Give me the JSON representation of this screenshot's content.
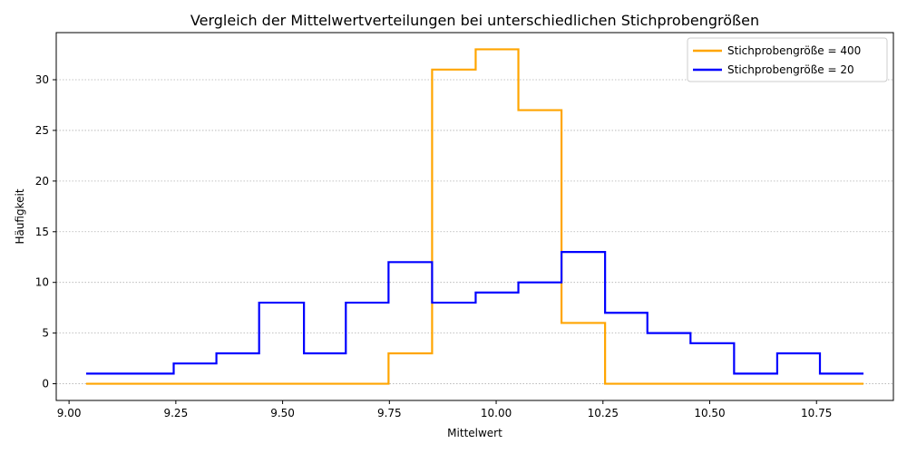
{
  "chart_data": {
    "type": "line",
    "title": "Vergleich der Mittelwertverteilungen bei unterschiedlichen Stichprobengrößen",
    "xlabel": "Mittelwert",
    "ylabel": "Häufigkeit",
    "xlim": [
      8.97,
      10.93
    ],
    "ylim": [
      -1.65,
      34.65
    ],
    "x_ticks": [
      9.0,
      9.25,
      9.5,
      9.75,
      10.0,
      10.25,
      10.5,
      10.75
    ],
    "x_tick_labels": [
      "9.00",
      "9.25",
      "9.50",
      "9.75",
      "10.00",
      "10.25",
      "10.50",
      "10.75"
    ],
    "y_ticks": [
      0,
      5,
      10,
      15,
      20,
      25,
      30
    ],
    "y_tick_labels": [
      "0",
      "5",
      "10",
      "15",
      "20",
      "25",
      "30"
    ],
    "grid": "y-dotted",
    "legend_position": "top-right",
    "series": [
      {
        "name": "Stichprobengröße = 400",
        "color": "#ffa500",
        "x": [
          9.04,
          9.245,
          9.345,
          9.445,
          9.55,
          9.648,
          9.748,
          9.85,
          9.952,
          10.052,
          10.153,
          10.255,
          10.354,
          10.455,
          10.557,
          10.658,
          10.758,
          10.86
        ],
        "y": [
          0,
          0,
          0,
          0,
          0,
          0,
          3,
          31,
          33,
          27,
          6,
          0,
          0,
          0,
          0,
          0,
          0,
          0
        ]
      },
      {
        "name": "Stichprobengröße = 20",
        "color": "#0000ff",
        "x": [
          9.04,
          9.245,
          9.345,
          9.445,
          9.55,
          9.648,
          9.748,
          9.85,
          9.952,
          10.052,
          10.153,
          10.255,
          10.354,
          10.455,
          10.557,
          10.658,
          10.758,
          10.86
        ],
        "y": [
          1,
          2,
          3,
          8,
          3,
          8,
          12,
          8,
          9,
          10,
          13,
          7,
          5,
          4,
          1,
          3,
          1,
          1
        ]
      }
    ]
  }
}
